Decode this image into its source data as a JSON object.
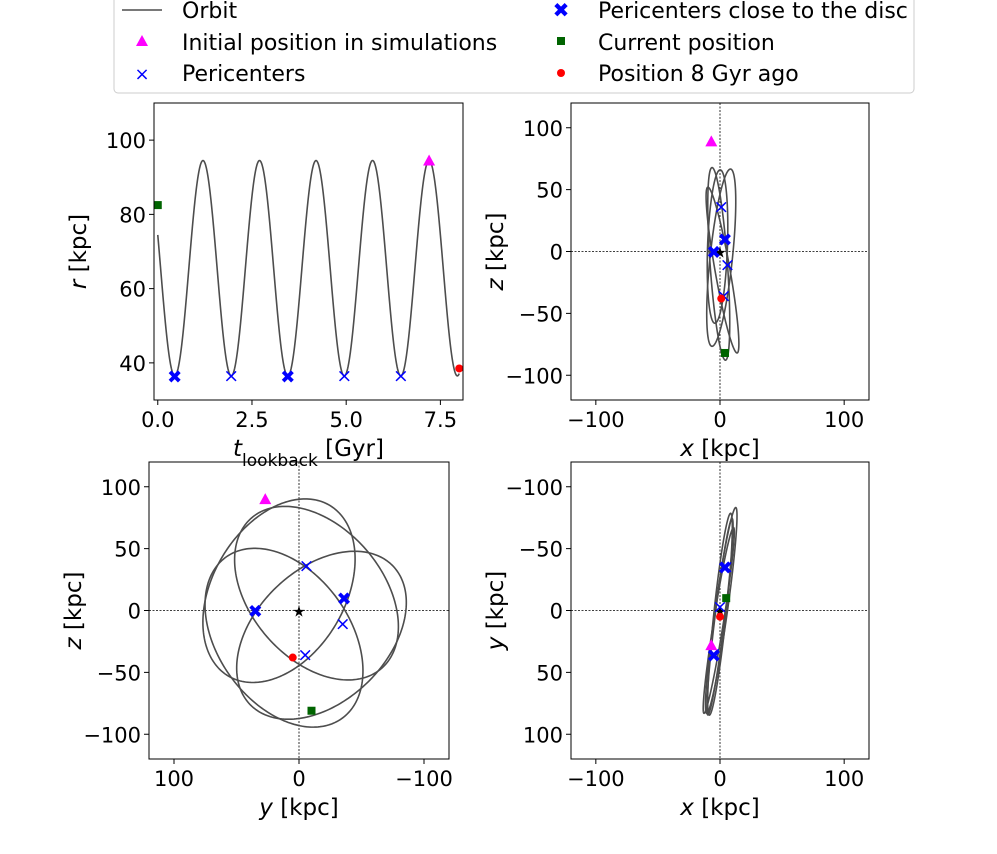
{
  "legend": {
    "orbit": "Orbit",
    "initial": "Initial position in simulations",
    "pericenters": "Pericenters",
    "pericenters_disc": "Pericenters close to the disc",
    "current": "Current position",
    "ago": "Position 8 Gyr ago"
  },
  "colors": {
    "orbit": "#4d4d4d",
    "initial": "#ff00ff",
    "pericenter": "#0000ff",
    "current": "#006400",
    "ago": "#ff0000"
  },
  "chart_data": [
    {
      "id": "r-vs-t",
      "type": "line",
      "xlabel_main": "t",
      "xlabel_sub": "lookback",
      "xlabel_unit": " [Gyr]",
      "ylabel_var": "r",
      "ylabel_unit": " [kpc]",
      "xlim": [
        -0.1,
        8.1
      ],
      "ylim": [
        30,
        110
      ],
      "xticks": [
        0.0,
        2.5,
        5.0,
        7.5
      ],
      "xtick_labels": [
        "0.0",
        "2.5",
        "5.0",
        "7.5"
      ],
      "yticks": [
        40,
        60,
        80,
        100
      ],
      "ytick_labels": [
        "40",
        "60",
        "80",
        "100"
      ],
      "orbit": {
        "period": 1.5,
        "r_min": 36.5,
        "r_max": 94.5,
        "t_start": 0,
        "t_end": 8.0
      },
      "pericenters": [
        {
          "x": 1.95,
          "y": 36.5
        },
        {
          "x": 4.95,
          "y": 36.5
        },
        {
          "x": 6.45,
          "y": 36.5
        }
      ],
      "pericenters_disc": [
        {
          "x": 0.45,
          "y": 36.5
        },
        {
          "x": 3.45,
          "y": 36.5
        }
      ],
      "initial": [
        {
          "x": 7.2,
          "y": 94.5
        }
      ],
      "current": [
        {
          "x": 0.0,
          "y": 82.5
        }
      ],
      "ago": [
        {
          "x": 8.0,
          "y": 38.5
        }
      ]
    },
    {
      "id": "z-vs-x",
      "type": "scatter",
      "xlabel_var": "x",
      "xlabel_unit": " [kpc]",
      "ylabel_var": "z",
      "ylabel_unit": " [kpc]",
      "xlim": [
        -120,
        120
      ],
      "ylim": [
        -120,
        120
      ],
      "xticks": [
        -100,
        0,
        100
      ],
      "xtick_labels": [
        "−100",
        "0",
        "100"
      ],
      "yticks": [
        -100,
        -50,
        0,
        50,
        100
      ],
      "ytick_labels": [
        "−100",
        "−50",
        "0",
        "50",
        "100"
      ],
      "orbit_ellipses": [
        {
          "cx": -1,
          "cy": -10,
          "a": 7,
          "b": 78,
          "rot": 4
        },
        {
          "cx": 1,
          "cy": -5,
          "a": 9,
          "b": 72,
          "rot": -6
        },
        {
          "cx": 2,
          "cy": -15,
          "a": 6,
          "b": 68,
          "rot": 10
        },
        {
          "cx": -2,
          "cy": 4,
          "a": 8,
          "b": 62,
          "rot": -2
        }
      ],
      "pericenters": [
        {
          "x": 1,
          "y": 36
        },
        {
          "x": 6,
          "y": -11
        },
        {
          "x": 3,
          "y": -36
        }
      ],
      "pericenters_disc": [
        {
          "x": -5,
          "y": 0
        },
        {
          "x": 4,
          "y": 10
        }
      ],
      "initial": [
        {
          "x": -7,
          "y": 89
        }
      ],
      "current": [
        {
          "x": 4,
          "y": -82
        }
      ],
      "ago": [
        {
          "x": 1,
          "y": -38
        }
      ],
      "origin": [
        {
          "x": 0,
          "y": 0
        }
      ]
    },
    {
      "id": "z-vs-y",
      "type": "scatter",
      "xlabel_var": "y",
      "xlabel_unit": " [kpc]",
      "ylabel_var": "z",
      "ylabel_unit": " [kpc]",
      "xlim": [
        120,
        -120
      ],
      "ylim": [
        -120,
        120
      ],
      "xticks": [
        100,
        0,
        -100
      ],
      "xtick_labels": [
        "100",
        "0",
        "−100"
      ],
      "yticks": [
        -100,
        -50,
        0,
        50,
        100
      ],
      "ytick_labels": [
        "−100",
        "−50",
        "0",
        "50",
        "100"
      ],
      "orbit_ellipses": [
        {
          "cx": 16,
          "cy": 16,
          "a": 53,
          "b": 80,
          "rot": 30
        },
        {
          "cx": -14,
          "cy": 14,
          "a": 53,
          "b": 80,
          "rot": -40
        },
        {
          "cx": -18,
          "cy": -20,
          "a": 53,
          "b": 80,
          "rot": 45
        },
        {
          "cx": 12,
          "cy": -22,
          "a": 53,
          "b": 80,
          "rot": -35
        }
      ],
      "pericenters": [
        {
          "x": -6,
          "y": 36
        },
        {
          "x": -35,
          "y": -11
        },
        {
          "x": -5,
          "y": -36
        }
      ],
      "pericenters_disc": [
        {
          "x": 35,
          "y": 0
        },
        {
          "x": -36,
          "y": 10
        }
      ],
      "initial": [
        {
          "x": 27,
          "y": 90
        }
      ],
      "current": [
        {
          "x": -10,
          "y": -81
        }
      ],
      "ago": [
        {
          "x": 5,
          "y": -38
        }
      ],
      "origin": [
        {
          "x": 0,
          "y": 0
        }
      ]
    },
    {
      "id": "y-vs-x",
      "type": "scatter",
      "xlabel_var": "x",
      "xlabel_unit": " [kpc]",
      "ylabel_var": "y",
      "ylabel_unit": " [kpc]",
      "xlim": [
        -120,
        120
      ],
      "ylim": [
        120,
        -120
      ],
      "xticks": [
        -100,
        0,
        100
      ],
      "xtick_labels": [
        "−100",
        "0",
        "100"
      ],
      "yticks": [
        -100,
        -50,
        0,
        50,
        100
      ],
      "ytick_labels": [
        "−100",
        "−50",
        "0",
        "50",
        "100"
      ],
      "orbit_ellipses": [
        {
          "cx": 0,
          "cy": 5,
          "a": 4,
          "b": 80,
          "rot": 7
        },
        {
          "cx": 1,
          "cy": 0,
          "a": 5,
          "b": 84,
          "rot": 8
        },
        {
          "cx": -1,
          "cy": 8,
          "a": 4,
          "b": 76,
          "rot": 9
        },
        {
          "cx": 0,
          "cy": 3,
          "a": 5,
          "b": 82,
          "rot": 6
        }
      ],
      "pericenters": [
        {
          "x": 5,
          "y": -35
        },
        {
          "x": 0,
          "y": -3
        },
        {
          "x": -5,
          "y": 35
        }
      ],
      "pericenters_disc": [
        {
          "x": 4,
          "y": -35
        },
        {
          "x": -5,
          "y": 36
        }
      ],
      "initial": [
        {
          "x": -7,
          "y": 28
        }
      ],
      "current": [
        {
          "x": 5,
          "y": -10
        }
      ],
      "ago": [
        {
          "x": 0,
          "y": 5
        }
      ],
      "origin": [
        {
          "x": 0,
          "y": 0
        }
      ]
    }
  ]
}
